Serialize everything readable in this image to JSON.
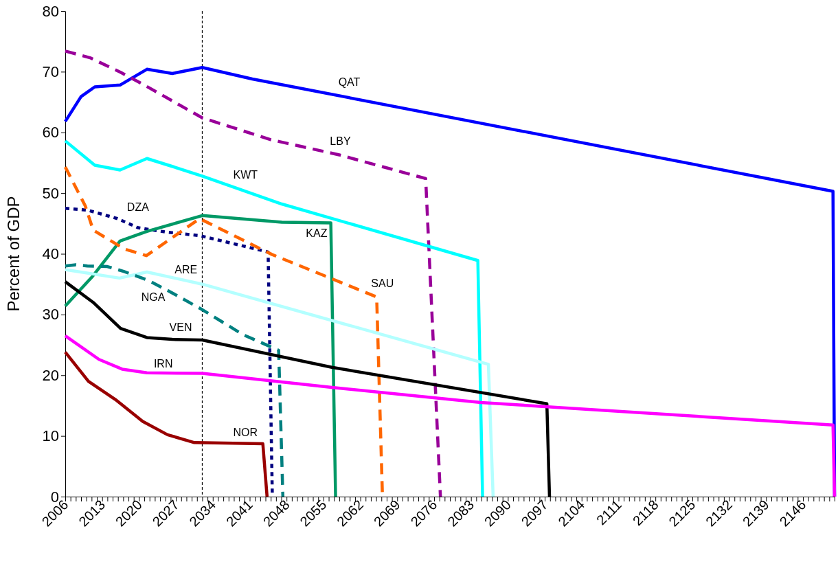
{
  "chart_data": {
    "type": "line",
    "ylabel": "Percent of GDP",
    "xlim": [
      2006,
      2152
    ],
    "ylim": [
      0,
      80
    ],
    "yticks": [
      0,
      10,
      20,
      30,
      40,
      50,
      60,
      70,
      80
    ],
    "grid": false,
    "legend": false,
    "marker": "none",
    "xticks": [
      2006,
      {
        "value": 2007,
        "label": null
      },
      {
        "value": 2008,
        "label": null
      },
      {
        "value": 2009,
        "label": null
      },
      {
        "value": 2010,
        "label": null
      },
      {
        "value": 2011,
        "label": null
      },
      {
        "value": 2012,
        "label": null
      },
      2013,
      {
        "value": 2014,
        "label": null
      },
      {
        "value": 2015,
        "label": null
      },
      {
        "value": 2016,
        "label": null
      },
      {
        "value": 2017,
        "label": null
      },
      {
        "value": 2018,
        "label": null
      },
      {
        "value": 2019,
        "label": null
      },
      2020,
      {
        "value": 2021,
        "label": null
      },
      {
        "value": 2022,
        "label": null
      },
      {
        "value": 2023,
        "label": null
      },
      {
        "value": 2024,
        "label": null
      },
      {
        "value": 2025,
        "label": null
      },
      {
        "value": 2026,
        "label": null
      },
      2027,
      {
        "value": 2028,
        "label": null
      },
      {
        "value": 2029,
        "label": null
      },
      {
        "value": 2030,
        "label": null
      },
      {
        "value": 2031,
        "label": null
      },
      {
        "value": 2032,
        "label": null
      },
      {
        "value": 2033,
        "label": null
      },
      2034,
      {
        "value": 2035,
        "label": null
      },
      {
        "value": 2036,
        "label": null
      },
      {
        "value": 2037,
        "label": null
      },
      {
        "value": 2038,
        "label": null
      },
      {
        "value": 2039,
        "label": null
      },
      {
        "value": 2040,
        "label": null
      },
      2041,
      {
        "value": 2042,
        "label": null
      },
      {
        "value": 2043,
        "label": null
      },
      {
        "value": 2044,
        "label": null
      },
      {
        "value": 2045,
        "label": null
      },
      {
        "value": 2046,
        "label": null
      },
      {
        "value": 2047,
        "label": null
      },
      2048,
      {
        "value": 2049,
        "label": null
      },
      {
        "value": 2050,
        "label": null
      },
      {
        "value": 2051,
        "label": null
      },
      {
        "value": 2052,
        "label": null
      },
      {
        "value": 2053,
        "label": null
      },
      {
        "value": 2054,
        "label": null
      },
      2055,
      {
        "value": 2056,
        "label": null
      },
      {
        "value": 2057,
        "label": null
      },
      {
        "value": 2058,
        "label": null
      },
      {
        "value": 2059,
        "label": null
      },
      {
        "value": 2060,
        "label": null
      },
      {
        "value": 2061,
        "label": null
      },
      2062,
      {
        "value": 2063,
        "label": null
      },
      {
        "value": 2064,
        "label": null
      },
      {
        "value": 2065,
        "label": null
      },
      {
        "value": 2066,
        "label": null
      },
      {
        "value": 2067,
        "label": null
      },
      {
        "value": 2068,
        "label": null
      },
      2069,
      {
        "value": 2070,
        "label": null
      },
      {
        "value": 2071,
        "label": null
      },
      {
        "value": 2072,
        "label": null
      },
      {
        "value": 2073,
        "label": null
      },
      {
        "value": 2074,
        "label": null
      },
      {
        "value": 2075,
        "label": null
      },
      2076,
      {
        "value": 2077,
        "label": null
      },
      {
        "value": 2078,
        "label": null
      },
      {
        "value": 2079,
        "label": null
      },
      {
        "value": 2080,
        "label": null
      },
      {
        "value": 2081,
        "label": null
      },
      {
        "value": 2082,
        "label": null
      },
      2083,
      {
        "value": 2084,
        "label": null
      },
      {
        "value": 2085,
        "label": null
      },
      {
        "value": 2086,
        "label": null
      },
      {
        "value": 2087,
        "label": null
      },
      {
        "value": 2088,
        "label": null
      },
      {
        "value": 2089,
        "label": null
      },
      2090,
      {
        "value": 2091,
        "label": null
      },
      {
        "value": 2092,
        "label": null
      },
      {
        "value": 2093,
        "label": null
      },
      {
        "value": 2094,
        "label": null
      },
      {
        "value": 2095,
        "label": null
      },
      {
        "value": 2096,
        "label": null
      },
      2097,
      {
        "value": 2098,
        "label": null
      },
      {
        "value": 2099,
        "label": null
      },
      {
        "value": 2100,
        "label": null
      },
      {
        "value": 2101,
        "label": null
      },
      {
        "value": 2102,
        "label": null
      },
      {
        "value": 2103,
        "label": null
      },
      2104,
      {
        "value": 2105,
        "label": null
      },
      {
        "value": 2106,
        "label": null
      },
      {
        "value": 2107,
        "label": null
      },
      {
        "value": 2108,
        "label": null
      },
      {
        "value": 2109,
        "label": null
      },
      {
        "value": 2110,
        "label": null
      },
      2111,
      {
        "value": 2112,
        "label": null
      },
      {
        "value": 2113,
        "label": null
      },
      {
        "value": 2114,
        "label": null
      },
      {
        "value": 2115,
        "label": null
      },
      {
        "value": 2116,
        "label": null
      },
      {
        "value": 2117,
        "label": null
      },
      2118,
      {
        "value": 2119,
        "label": null
      },
      {
        "value": 2120,
        "label": null
      },
      {
        "value": 2121,
        "label": null
      },
      {
        "value": 2122,
        "label": null
      },
      {
        "value": 2123,
        "label": null
      },
      {
        "value": 2124,
        "label": null
      },
      2125,
      {
        "value": 2126,
        "label": null
      },
      {
        "value": 2127,
        "label": null
      },
      {
        "value": 2128,
        "label": null
      },
      {
        "value": 2129,
        "label": null
      },
      {
        "value": 2130,
        "label": null
      },
      {
        "value": 2131,
        "label": null
      },
      2132,
      {
        "value": 2133,
        "label": null
      },
      {
        "value": 2134,
        "label": null
      },
      {
        "value": 2135,
        "label": null
      },
      {
        "value": 2136,
        "label": null
      },
      {
        "value": 2137,
        "label": null
      },
      {
        "value": 2138,
        "label": null
      },
      2139,
      {
        "value": 2140,
        "label": null
      },
      {
        "value": 2141,
        "label": null
      },
      {
        "value": 2142,
        "label": null
      },
      {
        "value": 2143,
        "label": null
      },
      {
        "value": 2144,
        "label": null
      },
      {
        "value": 2145,
        "label": null
      },
      2146,
      {
        "value": 2147,
        "label": null
      },
      {
        "value": 2148,
        "label": null
      },
      {
        "value": 2149,
        "label": null
      },
      {
        "value": 2150,
        "label": null
      },
      {
        "value": 2151,
        "label": null
      },
      {
        "value": 2152,
        "label": null
      }
    ],
    "ref_lines": [
      {
        "axis": "x",
        "value": 2032,
        "color": "#000000",
        "line_style": "dashed"
      }
    ],
    "series": [
      {
        "name": "QAT",
        "color": "#0000ff",
        "line_style": "solid",
        "x": [
          2006,
          2009,
          2011.6,
          2016.4,
          2021.5,
          2026.3,
          2032,
          2041.5,
          2151.7,
          2152
        ],
        "values": [
          61.8,
          65.9,
          67.5,
          67.8,
          70.4,
          69.7,
          70.7,
          68.8,
          50.3,
          0
        ]
      },
      {
        "name": "LBY",
        "color": "#990099",
        "line_style": "dashed",
        "x": [
          2006,
          2010.7,
          2016.5,
          2021,
          2026.3,
          2032,
          2045,
          2058,
          2074.4,
          2077.2
        ],
        "values": [
          73.4,
          72.3,
          69.9,
          67.8,
          65.2,
          62.4,
          58.8,
          56.3,
          52.4,
          0
        ]
      },
      {
        "name": "KWT",
        "color": "#00ffff",
        "line_style": "solid",
        "x": [
          2006,
          2011.6,
          2016.4,
          2021.5,
          2026.3,
          2032,
          2047.1,
          2084.3,
          2085.2
        ],
        "values": [
          58.6,
          54.6,
          53.8,
          55.7,
          54.4,
          52.8,
          48.2,
          38.9,
          0
        ]
      },
      {
        "name": "DZA",
        "color": "#000080",
        "line_style": "dotted",
        "x": [
          2006,
          2010.2,
          2015.9,
          2019.8,
          2025,
          2031.5,
          2044.5,
          2045.3
        ],
        "values": [
          47.5,
          47.2,
          45.8,
          44.3,
          43.6,
          43,
          40.3,
          0
        ]
      },
      {
        "name": "KAZ",
        "color": "#009966",
        "line_style": "solid",
        "x": [
          2006,
          2011.1,
          2016.4,
          2021.5,
          2032,
          2047.1,
          2056.4,
          2057.3
        ],
        "values": [
          31.4,
          36.2,
          42.1,
          43.7,
          46.3,
          45.2,
          45.1,
          0
        ]
      },
      {
        "name": "SAU",
        "color": "#ff6600",
        "line_style": "dashed",
        "x": [
          2006,
          2009.8,
          2011.3,
          2017.2,
          2021.4,
          2031.5,
          2045.2,
          2065.1,
          2066.2
        ],
        "values": [
          54.3,
          47.9,
          43.9,
          40.8,
          39.7,
          45.8,
          39.9,
          32.9,
          0
        ]
      },
      {
        "name": "ARE",
        "color": "#b3ffff",
        "line_style": "solid",
        "x": [
          2006,
          2016.3,
          2021.5,
          2032,
          2086.3,
          2087.2
        ],
        "values": [
          37.4,
          36,
          37,
          35,
          21.8,
          0
        ]
      },
      {
        "name": "NGA",
        "color": "#008080",
        "line_style": "dashed",
        "x": [
          2006,
          2008,
          2010.2,
          2014,
          2017.1,
          2021.8,
          2026,
          2032,
          2039.7,
          2046.5,
          2047.3
        ],
        "values": [
          38,
          38.2,
          38,
          37.9,
          37.1,
          35.6,
          33.7,
          30.8,
          26.7,
          24.1,
          0
        ]
      },
      {
        "name": "VEN",
        "color": "#000000",
        "line_style": "solid",
        "x": [
          2006,
          2011.3,
          2016.5,
          2021.5,
          2026.3,
          2032,
          2056.6,
          2097.4,
          2097.9
        ],
        "values": [
          35.4,
          32,
          27.7,
          26.2,
          25.9,
          25.8,
          21.3,
          15.3,
          0
        ]
      },
      {
        "name": "IRN",
        "color": "#ff00ff",
        "line_style": "solid",
        "x": [
          2006,
          2012.4,
          2016.8,
          2021.5,
          2032,
          2056.6,
          2084.9,
          2151.7,
          2152
        ],
        "values": [
          26.5,
          22.6,
          21,
          20.4,
          20.3,
          18,
          15.5,
          11.8,
          0
        ]
      },
      {
        "name": "NOR",
        "color": "#990000",
        "line_style": "solid",
        "x": [
          2006,
          2010.4,
          2015.5,
          2020.7,
          2025.4,
          2030.5,
          2043.5,
          2044.3
        ],
        "values": [
          23.8,
          19,
          16,
          12.4,
          10.2,
          8.9,
          8.7,
          0
        ]
      }
    ]
  }
}
